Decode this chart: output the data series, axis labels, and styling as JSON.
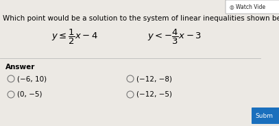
{
  "bg_color": "#ece9e4",
  "title_text": "Which point would be a solution to the system of linear inequalities shown below?",
  "watch_video_text": "◎ Watch Vide",
  "answer_label": "Answer",
  "options_left": [
    "(−6, 10)",
    "(0, −5)"
  ],
  "options_right": [
    "(−12, −8)",
    "(−12, −5)"
  ],
  "submit_btn_color": "#1a6fbd",
  "submit_btn_text": "Subm",
  "title_fontsize": 7.5,
  "answer_fontsize": 7.5,
  "option_fontsize": 7.5,
  "ineq_fontsize": 9.5,
  "watch_fontsize": 5.5
}
